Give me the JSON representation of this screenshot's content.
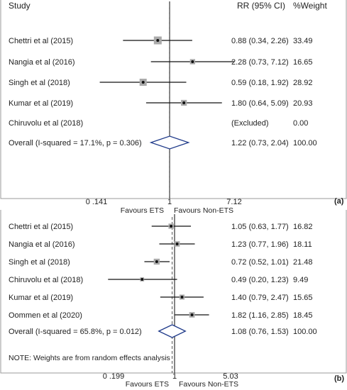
{
  "chart_data": [
    {
      "type": "forest",
      "panel_label": "(a)",
      "columns": {
        "study": "Study",
        "rr": "RR (95% CI)",
        "weight": "%Weight"
      },
      "studies": [
        {
          "name": "Chettri et al (2015)",
          "rr": 0.88,
          "lo": 0.34,
          "hi": 2.26,
          "ci_text": "0.88 (0.34, 2.26)",
          "weight": "33.49"
        },
        {
          "name": "Nangia et al (2016)",
          "rr": 2.28,
          "lo": 0.73,
          "hi": 7.12,
          "ci_text": "2.28 (0.73, 7.12)",
          "weight": "16.65"
        },
        {
          "name": "Singh et al (2018)",
          "rr": 0.59,
          "lo": 0.18,
          "hi": 1.92,
          "ci_text": "0.59 (0.18, 1.92)",
          "weight": "28.92"
        },
        {
          "name": "Kumar et al (2019)",
          "rr": 1.8,
          "lo": 0.64,
          "hi": 5.09,
          "ci_text": "1.80 (0.64, 5.09)",
          "weight": "20.93"
        },
        {
          "name": "Chiruvolu et al (2018)",
          "rr": null,
          "lo": null,
          "hi": null,
          "ci_text": "(Excluded)",
          "weight": "0.00"
        }
      ],
      "overall": {
        "name": "Overall  (I-squared = 17.1%, p = 0.306)",
        "rr": 1.22,
        "lo": 0.73,
        "hi": 2.04,
        "ci_text": "1.22 (0.73, 2.04)",
        "weight": "100.00"
      },
      "note": "",
      "x_scale": "log",
      "x_range": [
        0.141,
        7.12
      ],
      "ticks": [
        "0 .141",
        "1",
        "7.12"
      ],
      "favours_left": "Favours ETS",
      "favours_right": "Favours Non-ETS"
    },
    {
      "type": "forest",
      "panel_label": "(b)",
      "columns": {
        "study": "",
        "rr": "",
        "weight": ""
      },
      "studies": [
        {
          "name": "Chettri et al (2015)",
          "rr": 1.05,
          "lo": 0.63,
          "hi": 1.77,
          "ci_text": "1.05 (0.63, 1.77)",
          "weight": "16.82"
        },
        {
          "name": "Nangia et al (2016)",
          "rr": 1.23,
          "lo": 0.77,
          "hi": 1.96,
          "ci_text": "1.23 (0.77, 1.96)",
          "weight": "18.11"
        },
        {
          "name": "Singh et al (2018)",
          "rr": 0.72,
          "lo": 0.52,
          "hi": 1.01,
          "ci_text": "0.72 (0.52, 1.01)",
          "weight": "21.48"
        },
        {
          "name": "Chiruvolu et al (2018)",
          "rr": 0.49,
          "lo": 0.2,
          "hi": 1.23,
          "ci_text": "0.49 (0.20, 1.23)",
          "weight": "9.49"
        },
        {
          "name": "Kumar et al (2019)",
          "rr": 1.4,
          "lo": 0.79,
          "hi": 2.47,
          "ci_text": "1.40 (0.79, 2.47)",
          "weight": "15.65"
        },
        {
          "name": "Oommen et al (2020)",
          "rr": 1.82,
          "lo": 1.16,
          "hi": 2.85,
          "ci_text": "1.82 (1.16, 2.85)",
          "weight": "18.45"
        }
      ],
      "overall": {
        "name": "Overall  (I-squared = 65.8%, p = 0.012)",
        "rr": 1.08,
        "lo": 0.76,
        "hi": 1.53,
        "ci_text": "1.08 (0.76, 1.53)",
        "weight": "100.00"
      },
      "note": "NOTE: Weights are from random effects analysis",
      "x_scale": "log",
      "x_range": [
        0.199,
        5.03
      ],
      "ticks": [
        "0 .199",
        "1",
        "5.03"
      ],
      "favours_left": "Favours ETS",
      "favours_right": "Favours Non-ETS"
    }
  ]
}
